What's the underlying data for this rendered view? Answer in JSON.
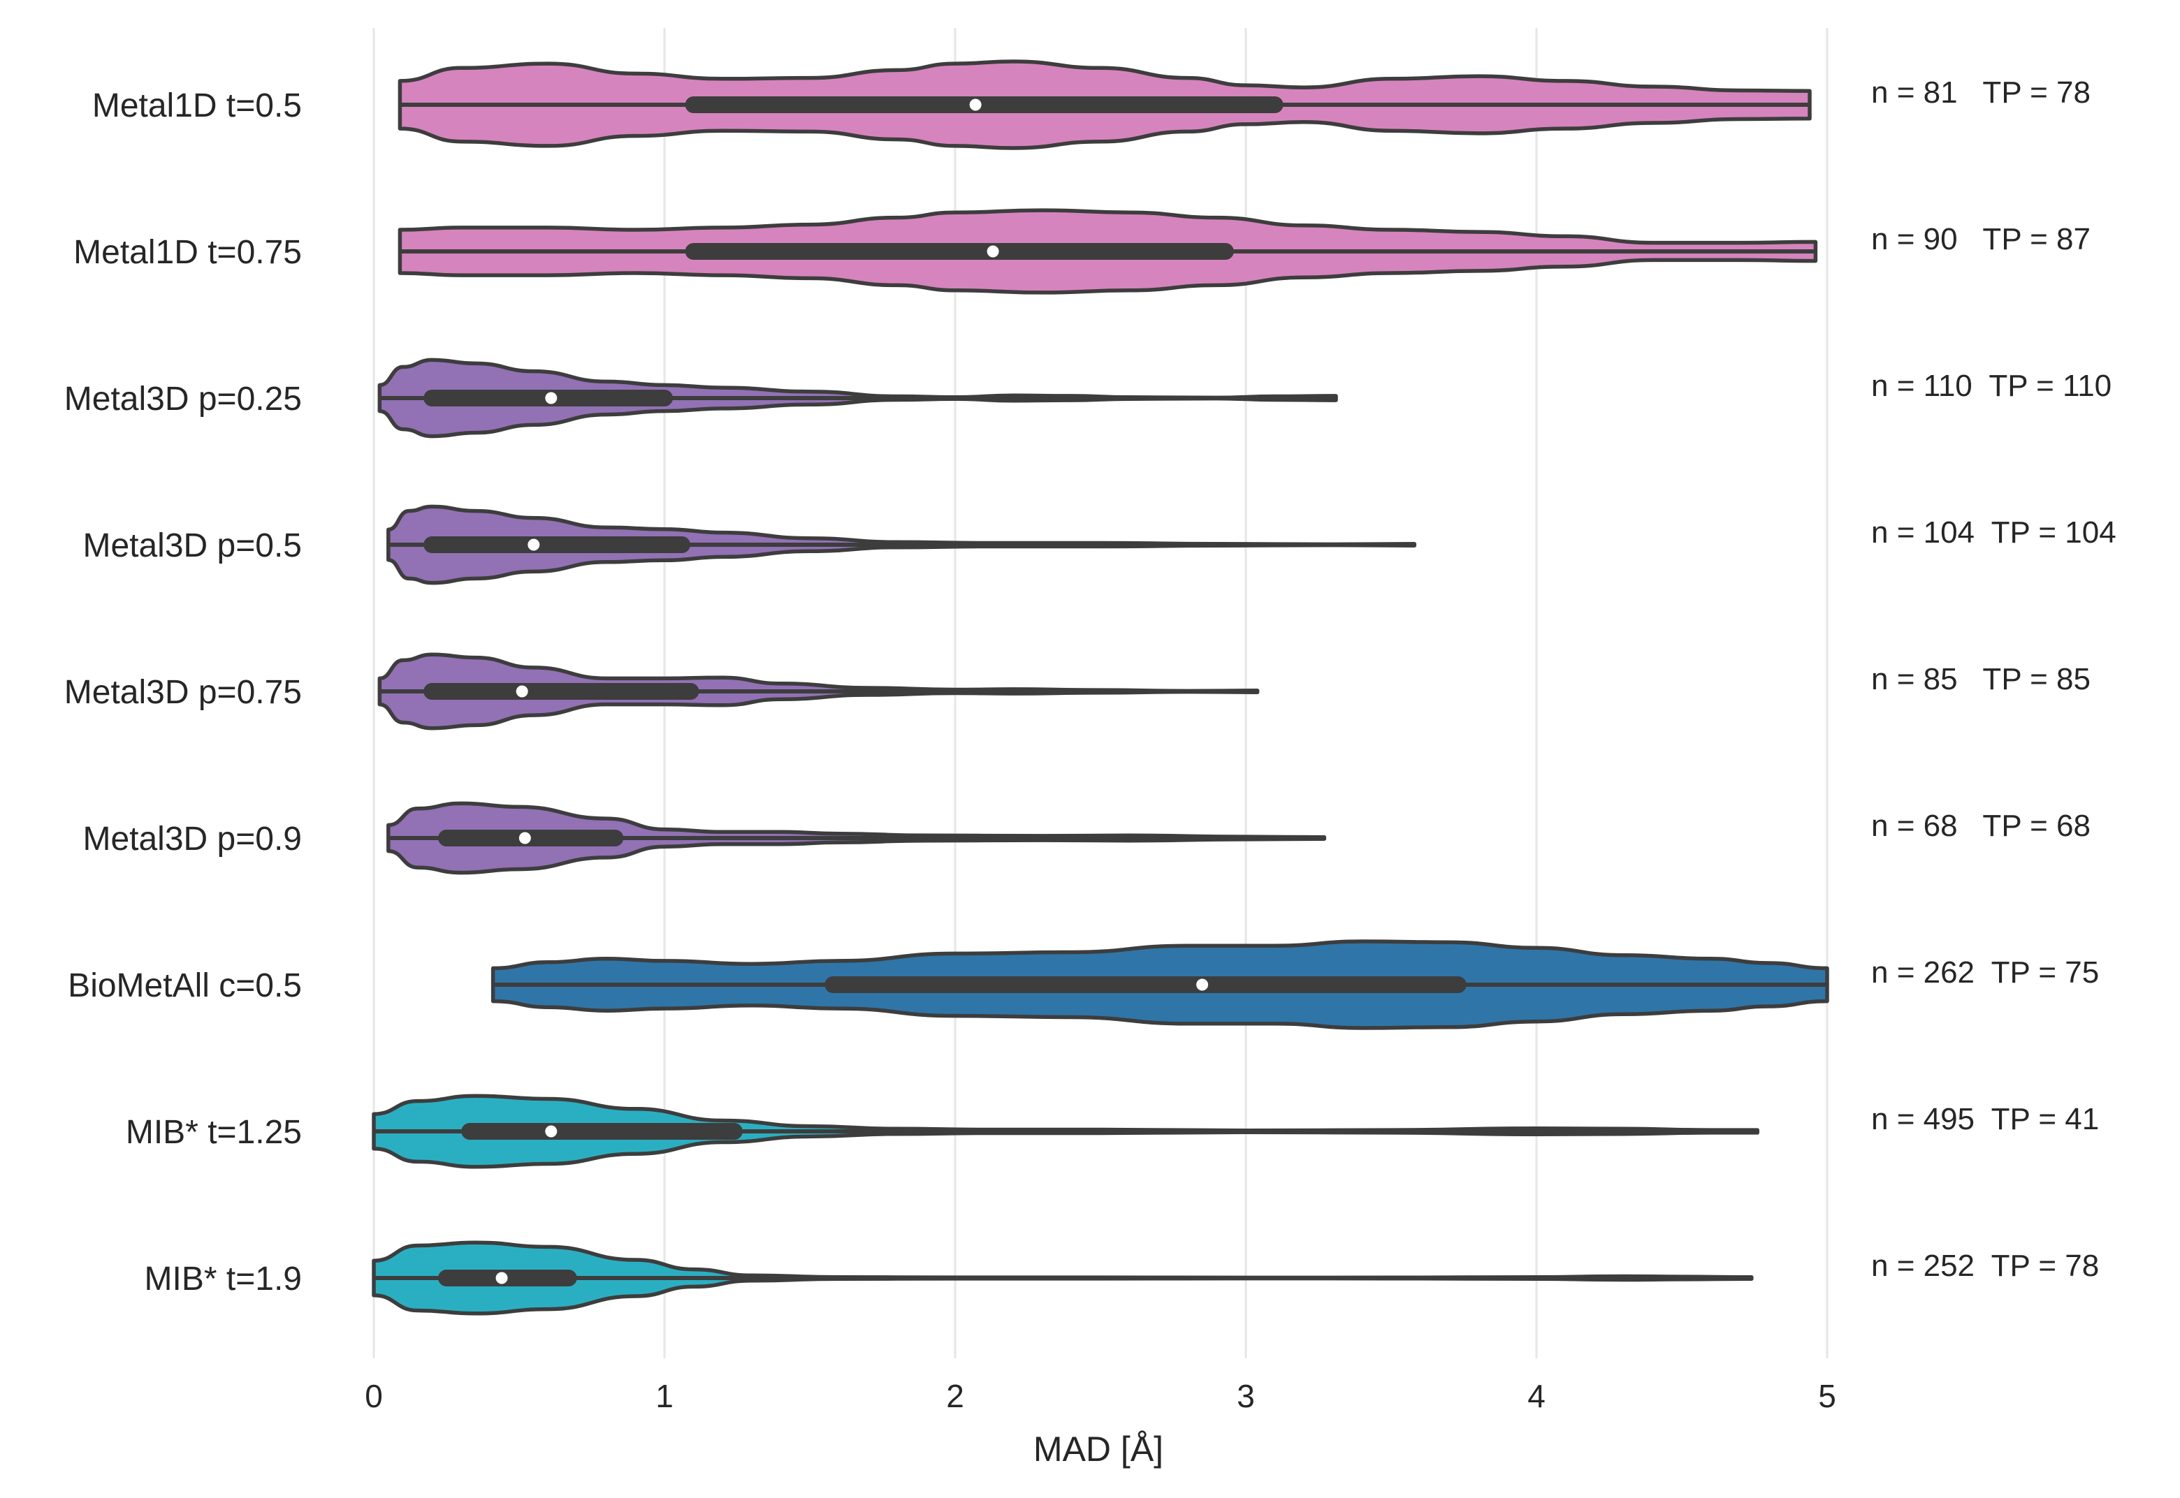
{
  "chart_data": {
    "type": "violin",
    "orientation": "horizontal",
    "title": "",
    "xlabel": "MAD [Å]",
    "ylabel": "",
    "xlim": [
      0,
      5
    ],
    "xticks": [
      0,
      1,
      2,
      3,
      4,
      5
    ],
    "grid": "vertical",
    "categories": [
      "Metal1D t=0.5",
      "Metal1D t=0.75",
      "Metal3D p=0.25",
      "Metal3D p=0.5",
      "Metal3D p=0.75",
      "Metal3D p=0.9",
      "BioMetAll c=0.5",
      "MIB* t=1.25",
      "MIB* t=1.9"
    ],
    "series": [
      {
        "name": "Metal1D t=0.5",
        "color": "#d684bd",
        "min": 0.09,
        "max": 4.94,
        "q1": 1.1,
        "median": 2.07,
        "q3": 3.1,
        "density": [
          [
            0.09,
            0.55
          ],
          [
            0.3,
            0.85
          ],
          [
            0.6,
            0.95
          ],
          [
            0.9,
            0.72
          ],
          [
            1.2,
            0.6
          ],
          [
            1.5,
            0.62
          ],
          [
            1.8,
            0.8
          ],
          [
            2.0,
            0.95
          ],
          [
            2.2,
            1.0
          ],
          [
            2.5,
            0.85
          ],
          [
            2.8,
            0.62
          ],
          [
            3.0,
            0.45
          ],
          [
            3.2,
            0.4
          ],
          [
            3.5,
            0.6
          ],
          [
            3.8,
            0.66
          ],
          [
            4.1,
            0.55
          ],
          [
            4.4,
            0.42
          ],
          [
            4.7,
            0.33
          ],
          [
            4.94,
            0.32
          ]
        ],
        "annotation": "n = 81   TP = 78"
      },
      {
        "name": "Metal1D t=0.75",
        "color": "#d684bd",
        "min": 0.09,
        "max": 4.96,
        "q1": 1.1,
        "median": 2.13,
        "q3": 2.93,
        "density": [
          [
            0.09,
            0.5
          ],
          [
            0.3,
            0.55
          ],
          [
            0.6,
            0.55
          ],
          [
            0.9,
            0.5
          ],
          [
            1.2,
            0.55
          ],
          [
            1.5,
            0.62
          ],
          [
            1.8,
            0.78
          ],
          [
            2.0,
            0.9
          ],
          [
            2.3,
            0.95
          ],
          [
            2.6,
            0.9
          ],
          [
            2.9,
            0.78
          ],
          [
            3.2,
            0.6
          ],
          [
            3.5,
            0.5
          ],
          [
            3.8,
            0.45
          ],
          [
            4.1,
            0.35
          ],
          [
            4.4,
            0.2
          ],
          [
            4.7,
            0.2
          ],
          [
            4.96,
            0.22
          ]
        ],
        "annotation": "n = 90   TP = 87"
      },
      {
        "name": "Metal3D p=0.25",
        "color": "#9271b5",
        "min": 0.02,
        "max": 3.31,
        "q1": 0.2,
        "median": 0.61,
        "q3": 1.0,
        "density": [
          [
            0.02,
            0.3
          ],
          [
            0.1,
            0.72
          ],
          [
            0.2,
            0.88
          ],
          [
            0.35,
            0.8
          ],
          [
            0.55,
            0.62
          ],
          [
            0.8,
            0.38
          ],
          [
            1.0,
            0.3
          ],
          [
            1.2,
            0.24
          ],
          [
            1.5,
            0.15
          ],
          [
            1.8,
            0.04
          ],
          [
            2.0,
            0.02
          ],
          [
            2.2,
            0.06
          ],
          [
            2.4,
            0.05
          ],
          [
            2.6,
            0.02
          ],
          [
            2.9,
            0.01
          ],
          [
            3.1,
            0.04
          ],
          [
            3.31,
            0.05
          ]
        ],
        "annotation": "n = 110  TP = 110"
      },
      {
        "name": "Metal3D p=0.5",
        "color": "#9271b5",
        "min": 0.05,
        "max": 3.58,
        "q1": 0.2,
        "median": 0.55,
        "q3": 1.06,
        "density": [
          [
            0.05,
            0.35
          ],
          [
            0.12,
            0.78
          ],
          [
            0.2,
            0.88
          ],
          [
            0.35,
            0.78
          ],
          [
            0.55,
            0.62
          ],
          [
            0.8,
            0.4
          ],
          [
            1.0,
            0.36
          ],
          [
            1.2,
            0.28
          ],
          [
            1.5,
            0.15
          ],
          [
            1.8,
            0.06
          ],
          [
            2.1,
            0.04
          ],
          [
            2.5,
            0.04
          ],
          [
            2.9,
            0.02
          ],
          [
            3.3,
            0.01
          ],
          [
            3.58,
            0.02
          ]
        ],
        "annotation": "n = 104  TP = 104"
      },
      {
        "name": "Metal3D p=0.75",
        "color": "#9271b5",
        "min": 0.02,
        "max": 3.04,
        "q1": 0.2,
        "median": 0.51,
        "q3": 1.09,
        "density": [
          [
            0.02,
            0.3
          ],
          [
            0.1,
            0.72
          ],
          [
            0.2,
            0.85
          ],
          [
            0.35,
            0.78
          ],
          [
            0.55,
            0.55
          ],
          [
            0.8,
            0.3
          ],
          [
            1.0,
            0.3
          ],
          [
            1.2,
            0.32
          ],
          [
            1.4,
            0.18
          ],
          [
            1.7,
            0.08
          ],
          [
            2.0,
            0.04
          ],
          [
            2.2,
            0.05
          ],
          [
            2.5,
            0.03
          ],
          [
            2.8,
            0.01
          ],
          [
            3.04,
            0.02
          ]
        ],
        "annotation": "n = 85   TP = 85"
      },
      {
        "name": "Metal3D p=0.9",
        "color": "#9271b5",
        "min": 0.05,
        "max": 3.27,
        "q1": 0.25,
        "median": 0.52,
        "q3": 0.83,
        "density": [
          [
            0.05,
            0.3
          ],
          [
            0.15,
            0.68
          ],
          [
            0.3,
            0.8
          ],
          [
            0.5,
            0.72
          ],
          [
            0.8,
            0.45
          ],
          [
            1.0,
            0.2
          ],
          [
            1.2,
            0.14
          ],
          [
            1.4,
            0.14
          ],
          [
            1.6,
            0.1
          ],
          [
            1.9,
            0.06
          ],
          [
            2.3,
            0.05
          ],
          [
            2.6,
            0.06
          ],
          [
            3.0,
            0.03
          ],
          [
            3.27,
            0.02
          ]
        ],
        "annotation": "n = 68   TP = 68"
      },
      {
        "name": "BioMetAll c=0.5",
        "color": "#2f75a8",
        "min": 0.41,
        "max": 5.0,
        "q1": 1.58,
        "median": 2.85,
        "q3": 3.73,
        "density": [
          [
            0.41,
            0.38
          ],
          [
            0.6,
            0.52
          ],
          [
            0.8,
            0.6
          ],
          [
            1.0,
            0.55
          ],
          [
            1.3,
            0.48
          ],
          [
            1.6,
            0.55
          ],
          [
            2.0,
            0.72
          ],
          [
            2.4,
            0.75
          ],
          [
            2.8,
            0.9
          ],
          [
            3.1,
            0.9
          ],
          [
            3.4,
            1.0
          ],
          [
            3.7,
            0.98
          ],
          [
            4.0,
            0.85
          ],
          [
            4.3,
            0.68
          ],
          [
            4.6,
            0.6
          ],
          [
            4.8,
            0.5
          ],
          [
            5.0,
            0.38
          ]
        ],
        "annotation": "n = 262  TP = 75"
      },
      {
        "name": "MIB* t=1.25",
        "color": "#2aafc2",
        "min": 0.0,
        "max": 4.76,
        "q1": 0.33,
        "median": 0.61,
        "q3": 1.24,
        "density": [
          [
            0.0,
            0.4
          ],
          [
            0.15,
            0.7
          ],
          [
            0.35,
            0.82
          ],
          [
            0.6,
            0.75
          ],
          [
            0.9,
            0.52
          ],
          [
            1.2,
            0.25
          ],
          [
            1.5,
            0.12
          ],
          [
            1.8,
            0.06
          ],
          [
            2.1,
            0.04
          ],
          [
            2.5,
            0.04
          ],
          [
            3.0,
            0.02
          ],
          [
            3.5,
            0.03
          ],
          [
            4.0,
            0.07
          ],
          [
            4.3,
            0.06
          ],
          [
            4.6,
            0.03
          ],
          [
            4.76,
            0.03
          ]
        ],
        "annotation": "n = 495  TP = 41"
      },
      {
        "name": "MIB* t=1.9",
        "color": "#2aafc2",
        "min": 0.0,
        "max": 4.74,
        "q1": 0.25,
        "median": 0.44,
        "q3": 0.67,
        "density": [
          [
            0.0,
            0.4
          ],
          [
            0.15,
            0.75
          ],
          [
            0.35,
            0.82
          ],
          [
            0.6,
            0.72
          ],
          [
            0.9,
            0.42
          ],
          [
            1.1,
            0.2
          ],
          [
            1.3,
            0.06
          ],
          [
            1.6,
            0.02
          ],
          [
            2.0,
            0.015
          ],
          [
            2.5,
            0.015
          ],
          [
            3.0,
            0.01
          ],
          [
            3.5,
            0.012
          ],
          [
            4.0,
            0.02
          ],
          [
            4.3,
            0.04
          ],
          [
            4.5,
            0.03
          ],
          [
            4.74,
            0.02
          ]
        ],
        "annotation": "n = 252  TP = 78"
      }
    ]
  }
}
